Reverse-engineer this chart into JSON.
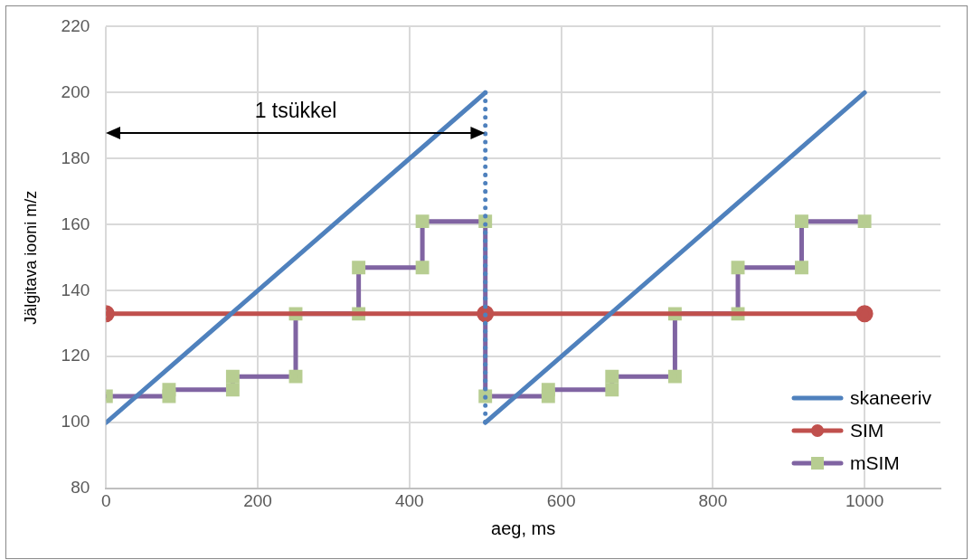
{
  "chart_data": {
    "type": "line",
    "xlabel": "aeg, ms",
    "ylabel": "Jälgitava iooni m/z",
    "xlim": [
      0,
      1100
    ],
    "xticks": [
      0,
      200,
      400,
      600,
      800,
      1000
    ],
    "ylim": [
      80,
      220
    ],
    "yticks": [
      80,
      100,
      120,
      140,
      160,
      180,
      200,
      220
    ],
    "grid": true,
    "legend": "bottom right",
    "annotations": [
      "1 tsükkel"
    ],
    "series": [
      {
        "name": "skaneeriv",
        "color": "#4f81bd",
        "x": [
          0,
          500
        ],
        "values": [
          100,
          200
        ],
        "marker": "none",
        "line_style": "solid"
      },
      {
        "color": "#4f81bd",
        "x": [
          500,
          500
        ],
        "values": [
          200,
          100
        ],
        "marker": "none",
        "line_style": "dotted"
      },
      {
        "color": "#4f81bd",
        "x": [
          500,
          1000
        ],
        "values": [
          100,
          200
        ],
        "marker": "none",
        "line_style": "solid"
      },
      {
        "name": "SIM",
        "color": "#c0504d",
        "x": [
          0,
          500,
          1000
        ],
        "values": [
          133,
          133,
          133
        ],
        "marker": "circle",
        "line_style": "solid"
      },
      {
        "name": "mSIM",
        "color": "#8064a2",
        "colors": [
          "#b7cd91",
          "#b7cd91",
          "#b7cd91",
          "#b7cd91",
          "#b7cd91",
          "#b7cd91",
          "#b7cd91",
          "#b7cd91",
          "#b7cd91",
          "#b7cd91",
          "#b7cd91",
          "#b7cd91",
          "#b7cd91",
          "#b7cd91",
          "#b7cd91",
          "#b7cd91",
          "#b7cd91",
          "#b7cd91",
          "#b7cd91",
          "#b7cd91",
          "#b7cd91",
          "#b7cd91",
          "#b7cd91",
          "#b7cd91"
        ],
        "x": [
          0,
          83,
          83,
          167,
          167,
          250,
          250,
          333,
          333,
          417,
          417,
          500,
          500,
          583,
          583,
          667,
          667,
          750,
          750,
          833,
          833,
          917,
          917,
          1000
        ],
        "values": [
          108,
          108,
          110,
          110,
          114,
          114,
          133,
          133,
          147,
          147,
          161,
          161,
          108,
          108,
          110,
          110,
          114,
          114,
          133,
          133,
          147,
          147,
          161,
          161
        ],
        "marker": "square",
        "line_style": "solid"
      }
    ]
  }
}
